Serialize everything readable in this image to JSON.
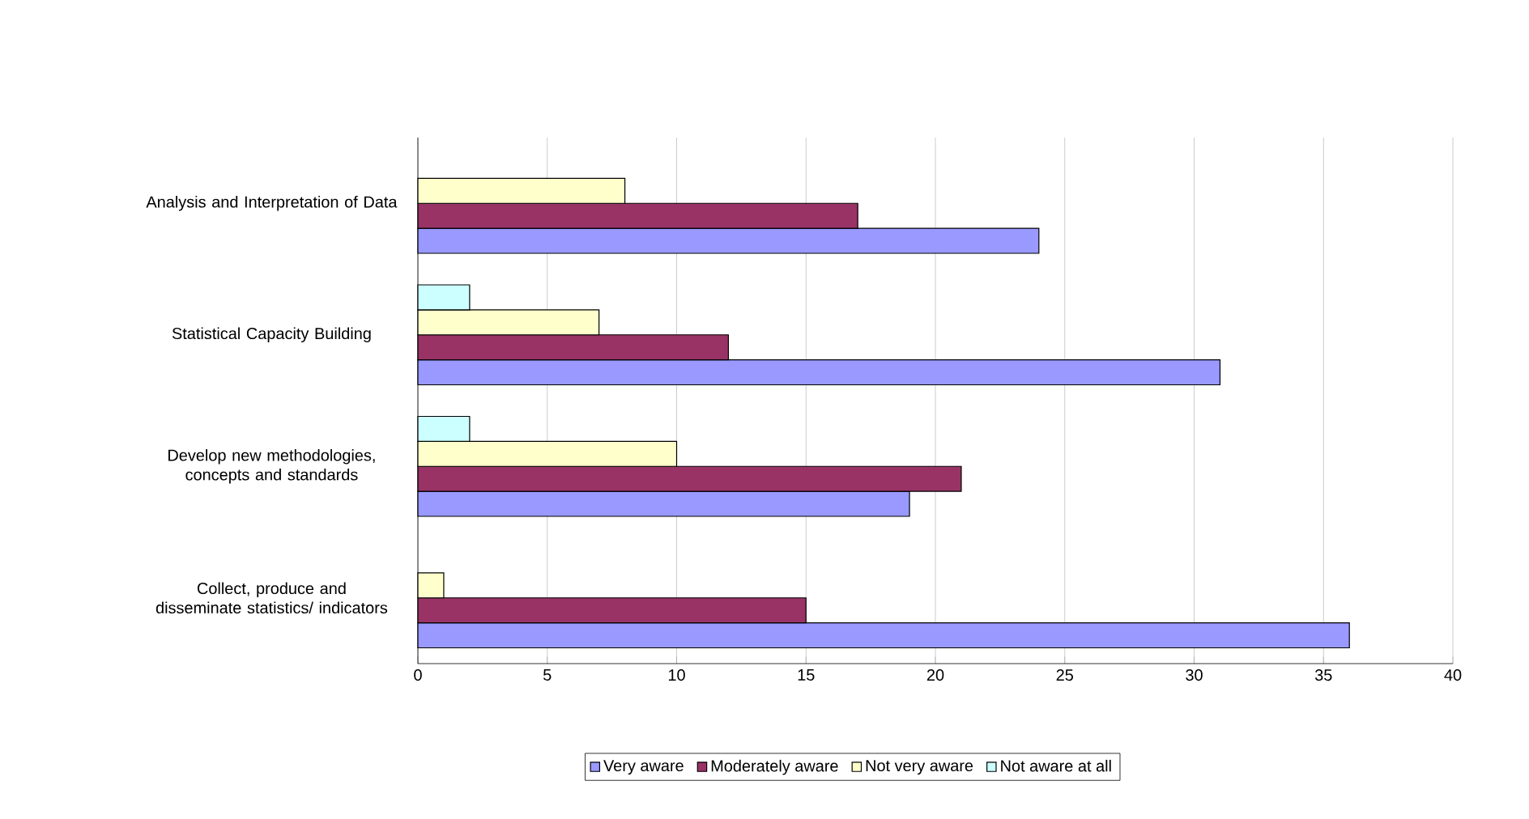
{
  "chart_data": {
    "type": "bar",
    "orientation": "horizontal",
    "categories": [
      "Analysis and Interpretation of Data",
      "Statistical Capacity Building",
      "Develop new methodologies, concepts and standards",
      "Collect, produce and disseminate statistics/ indicators"
    ],
    "series": [
      {
        "name": "Very aware",
        "color": "#9999ff",
        "values": [
          24,
          31,
          19,
          36
        ]
      },
      {
        "name": "Moderately aware",
        "color": "#993366",
        "values": [
          17,
          12,
          21,
          15
        ]
      },
      {
        "name": "Not very aware",
        "color": "#ffffcc",
        "values": [
          8,
          7,
          10,
          1
        ]
      },
      {
        "name": "Not aware at all",
        "color": "#ccffff",
        "values": [
          null,
          2,
          2,
          null
        ]
      }
    ],
    "xlim": [
      0,
      40
    ],
    "xticks": [
      0,
      5,
      10,
      15,
      20,
      25,
      30,
      35,
      40
    ],
    "grid": "x",
    "legend": "bottom"
  }
}
